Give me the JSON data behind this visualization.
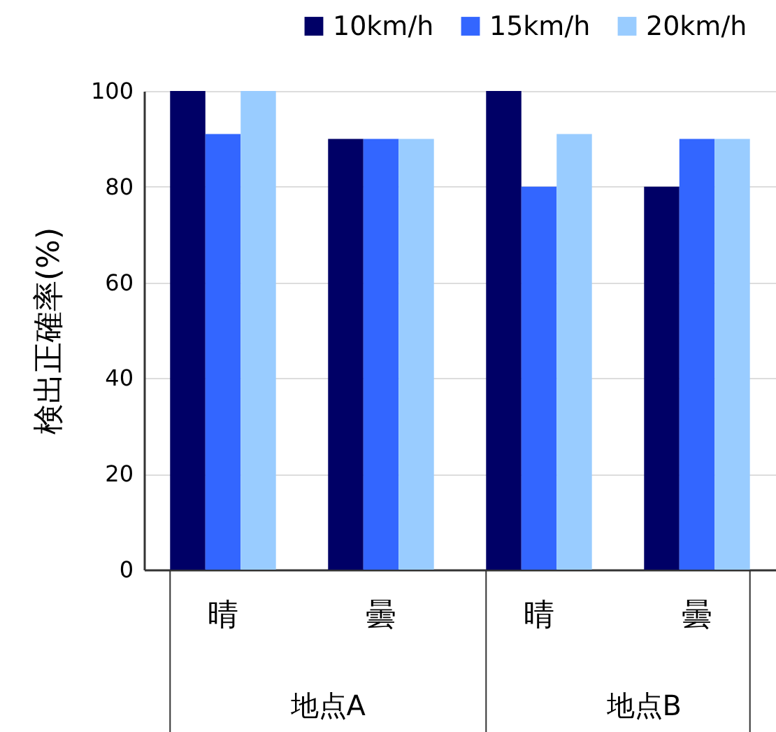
{
  "chart_data": {
    "type": "bar",
    "ylabel": "検出正確率(%)",
    "categories": [
      "晴",
      "曇",
      "晴",
      "曇"
    ],
    "series": [
      {
        "name": "10km/h",
        "color": "#000066",
        "values": [
          100,
          90,
          100,
          80
        ]
      },
      {
        "name": "15km/h",
        "color": "#3366ff",
        "values": [
          91,
          90,
          80,
          90
        ]
      },
      {
        "name": "20km/h",
        "color": "#99ccff",
        "values": [
          100,
          90,
          91,
          90
        ]
      }
    ],
    "annotations": [
      "地点A",
      "地点B"
    ],
    "ylim": [
      0,
      100
    ],
    "yticks": [
      0,
      20,
      40,
      60,
      80,
      100
    ],
    "grid": "y",
    "legend": "top"
  }
}
